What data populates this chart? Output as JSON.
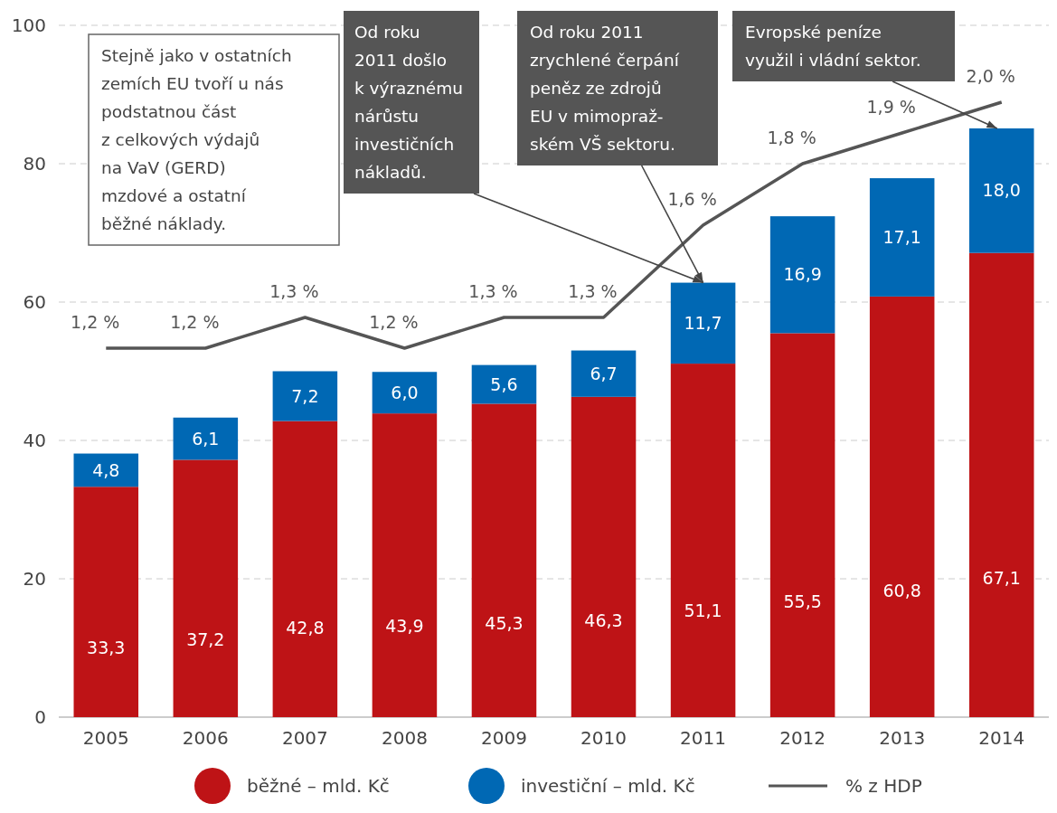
{
  "chart_data": {
    "type": "bar",
    "stacked": true,
    "categories": [
      "2005",
      "2006",
      "2007",
      "2008",
      "2009",
      "2010",
      "2011",
      "2012",
      "2013",
      "2014"
    ],
    "series": [
      {
        "name": "běžné – mld. Kč",
        "color": "#be1316",
        "values": [
          33.3,
          37.2,
          42.8,
          43.9,
          45.3,
          46.3,
          51.1,
          55.5,
          60.8,
          67.1
        ],
        "value_labels": [
          "33,3",
          "37,2",
          "42,8",
          "43,9",
          "45,3",
          "46,3",
          "51,1",
          "55,5",
          "60,8",
          "67,1"
        ]
      },
      {
        "name": "investiční – mld. Kč",
        "color": "#0068b4",
        "values": [
          4.8,
          6.1,
          7.2,
          6.0,
          5.6,
          6.7,
          11.7,
          16.9,
          17.1,
          18.0
        ],
        "value_labels": [
          "4,8",
          "6,1",
          "7,2",
          "6,0",
          "5,6",
          "6,7",
          "11,7",
          "16,9",
          "17,1",
          "18,0"
        ]
      },
      {
        "name": "% z HDP",
        "type": "line",
        "axis": "y2",
        "color": "#555555",
        "values": [
          1.2,
          1.2,
          1.3,
          1.2,
          1.3,
          1.3,
          1.6,
          1.8,
          1.9,
          2.0
        ],
        "value_labels": [
          "1,2 %",
          "1,2 %",
          "1,3 %",
          "1,2 %",
          "1,3 %",
          "1,3 %",
          "1,6 %",
          "1,8 %",
          "1,9 %",
          "2,0 %"
        ]
      }
    ],
    "ylim": [
      0,
      100
    ],
    "yticks": [
      0,
      20,
      40,
      60,
      80,
      100
    ],
    "y2lim": [
      0,
      2.25
    ],
    "grid": "y",
    "legend": "bottom",
    "marker": "none",
    "line_style": "solid",
    "annotations": [
      "Stejně jako v ostatních\nzemích EU tvoří u nás\npodstatnou část\nz celkových výdajů\nna VaV (GERD)\nmzdové a ostatní\nběžné náklady.",
      {
        "text": "Od roku\n2011 došlo\nk výraznému\nnárůstu\ninvestičních\nnákladů.",
        "x": "2011",
        "y": 62.8
      },
      {
        "text": "Od roku 2011\nzrychlené čerpání\npeněz ze zdrojů\nEU v mimopraž-\nském VŠ sektoru.",
        "x": "2011",
        "y": 62.8
      },
      {
        "text": "Evropské peníze\nvyužil i vládní sektor.",
        "x": "2014",
        "y": 85.1
      }
    ]
  }
}
